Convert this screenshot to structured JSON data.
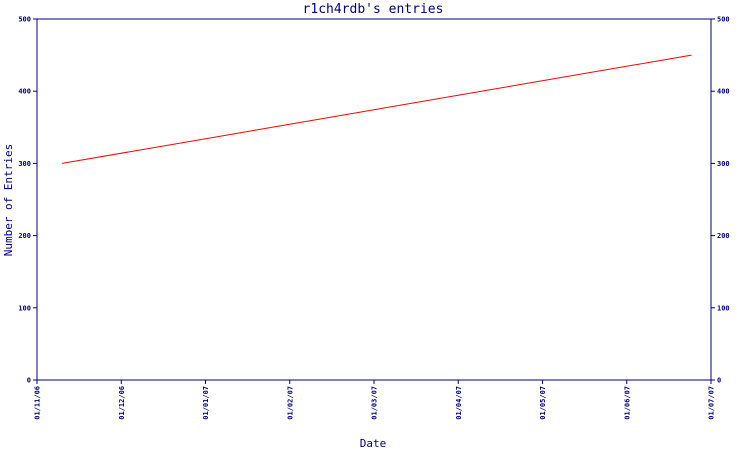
{
  "chart_data": {
    "type": "line",
    "title": "r1ch4rdb's entries",
    "xlabel": "Date",
    "ylabel": "Number of Entries",
    "x_ticks": [
      "01/11/06",
      "01/12/06",
      "01/01/07",
      "01/02/07",
      "01/03/07",
      "01/04/07",
      "01/05/07",
      "01/06/07",
      "01/07/07"
    ],
    "ylim": [
      0,
      500
    ],
    "y_ticks": [
      0,
      100,
      200,
      300,
      400,
      500
    ],
    "y_tick_labels": [
      "0",
      "100",
      "200",
      "300",
      "400",
      "500"
    ],
    "xlim": [
      "2006-11-01",
      "2007-07-01"
    ],
    "series": [
      {
        "color": "#ff0000",
        "points": [
          {
            "x": "2006-11-10",
            "y": 300
          },
          {
            "x": "2007-06-24",
            "y": 450
          }
        ]
      }
    ],
    "axis_color": "#000080",
    "grid": false
  }
}
